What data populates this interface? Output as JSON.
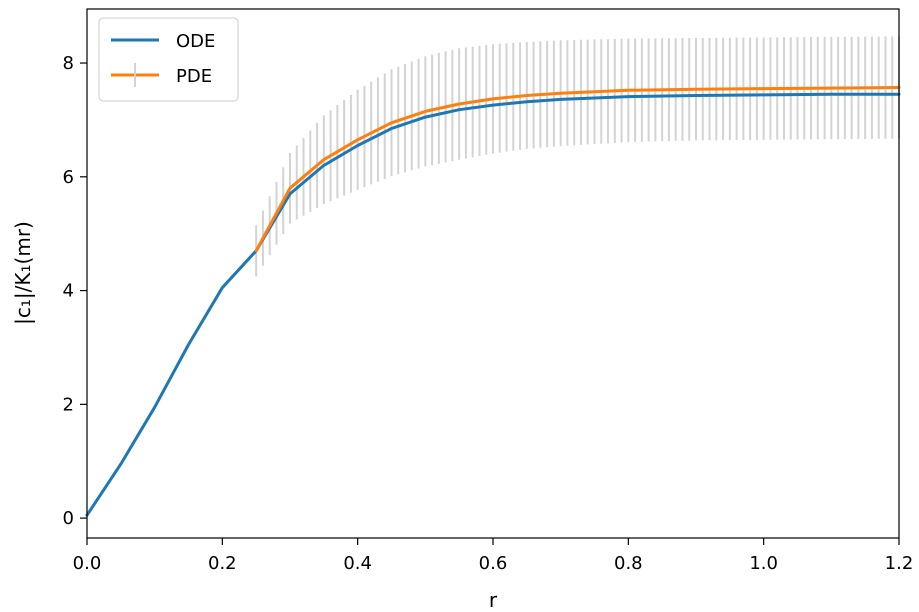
{
  "chart_data": {
    "type": "line",
    "title": "",
    "xlabel": "r",
    "ylabel": "|c₁|/K₁(mr)",
    "xlim": [
      0.0,
      1.2
    ],
    "ylim": [
      -0.35,
      8.95
    ],
    "xticks": [
      0.0,
      0.2,
      0.4,
      0.6,
      0.8,
      1.0,
      1.2
    ],
    "xtick_labels": [
      "0.0",
      "0.2",
      "0.4",
      "0.6",
      "0.8",
      "1.0",
      "1.2"
    ],
    "yticks": [
      0,
      2,
      4,
      6,
      8
    ],
    "ytick_labels": [
      "0",
      "2",
      "4",
      "6",
      "8"
    ],
    "grid": false,
    "legend_position": "top-left",
    "series": [
      {
        "name": "ODE",
        "color": "#1f77b4",
        "x": [
          0.0,
          0.05,
          0.1,
          0.15,
          0.2,
          0.25,
          0.3,
          0.35,
          0.4,
          0.45,
          0.5,
          0.55,
          0.6,
          0.65,
          0.7,
          0.8,
          0.9,
          1.0,
          1.1,
          1.2
        ],
        "y": [
          0.05,
          0.95,
          1.95,
          3.05,
          4.05,
          4.7,
          5.7,
          6.2,
          6.55,
          6.85,
          7.05,
          7.18,
          7.26,
          7.32,
          7.36,
          7.41,
          7.43,
          7.44,
          7.45,
          7.45
        ]
      },
      {
        "name": "PDE",
        "color": "#ff7f0e",
        "errorbar_color": "#d3d3d3",
        "x": [
          0.25,
          0.3,
          0.35,
          0.4,
          0.45,
          0.5,
          0.55,
          0.6,
          0.65,
          0.7,
          0.8,
          0.9,
          1.0,
          1.1,
          1.2
        ],
        "y": [
          4.7,
          5.8,
          6.3,
          6.65,
          6.95,
          7.15,
          7.28,
          7.37,
          7.43,
          7.47,
          7.52,
          7.54,
          7.55,
          7.56,
          7.57
        ],
        "err": [
          0.45,
          0.62,
          0.78,
          0.88,
          0.94,
          0.97,
          0.98,
          0.96,
          0.94,
          0.93,
          0.91,
          0.9,
          0.9,
          0.9,
          0.9
        ]
      }
    ]
  }
}
